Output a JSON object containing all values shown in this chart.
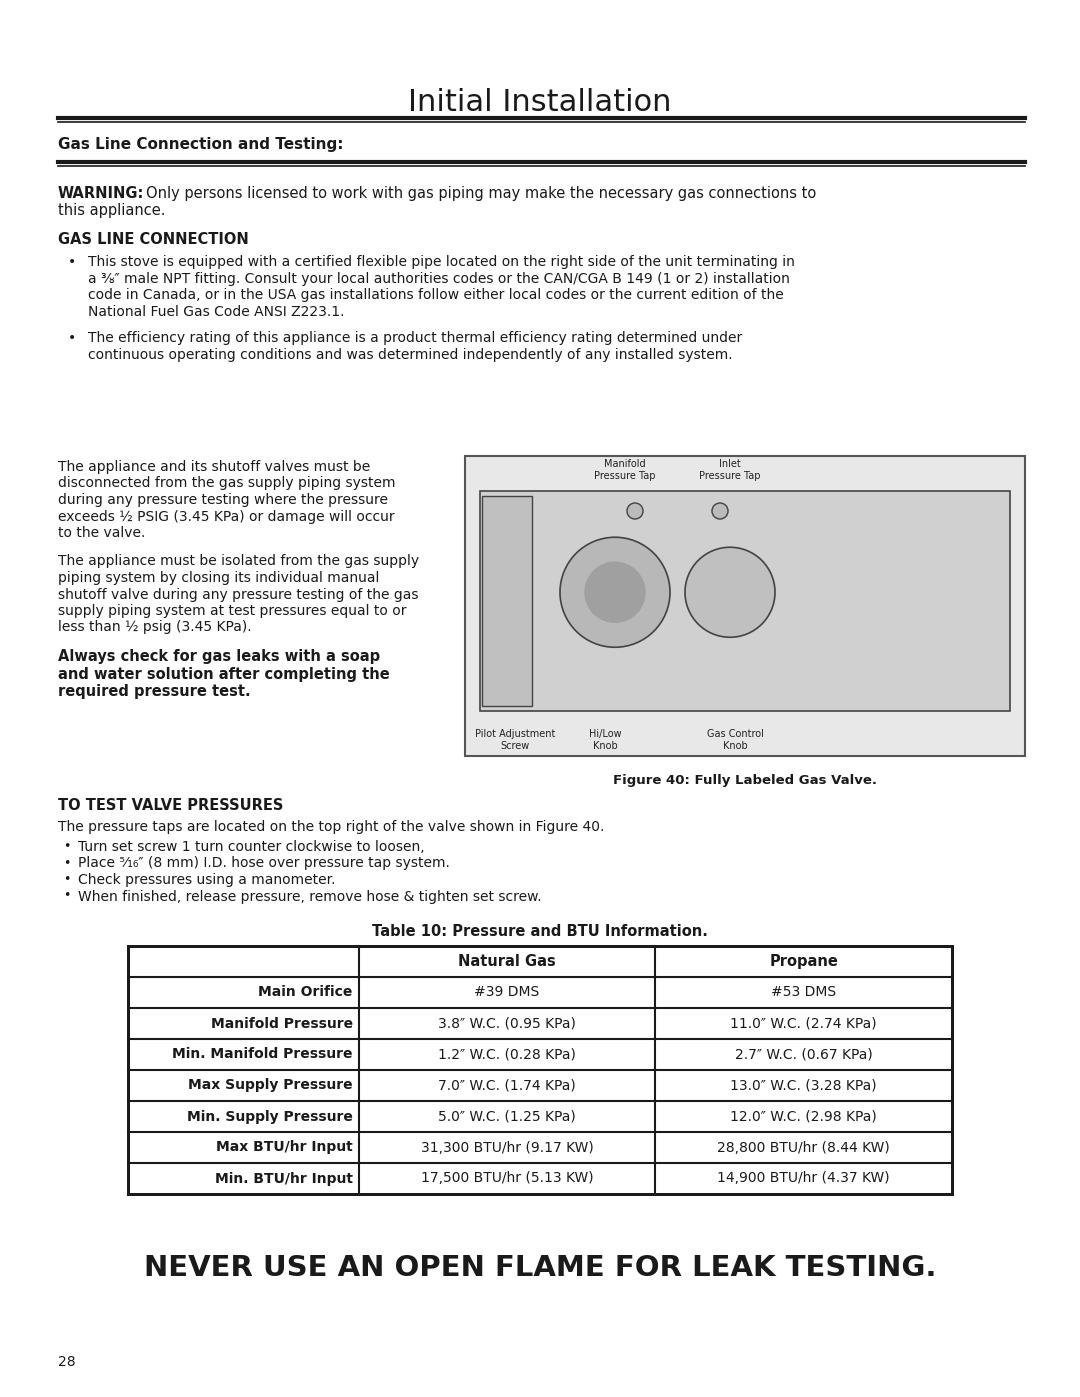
{
  "page_title": "Initial Installation",
  "section_title": "Gas Line Connection and Testing:",
  "page_number": "28",
  "warning_bold": "WARNING:",
  "warning_line1": "Only persons licensed to work with gas piping may make the necessary gas connections to",
  "warning_line2": "this appliance.",
  "gas_line_header": "GAS LINE CONNECTION",
  "bullet1_lines": [
    "This stove is equipped with a certified flexible pipe located on the right side of the unit terminating in",
    "a ⅜″ male NPT fitting. Consult your local authorities codes or the CAN/CGA B 149 (1 or 2) installation",
    "code in Canada, or in the USA gas installations follow either local codes or the current edition of the",
    "National Fuel Gas Code ANSI Z223.1."
  ],
  "bullet2_lines": [
    "The efficiency rating of this appliance is a product thermal efficiency rating determined under",
    "continuous operating conditions and was determined independently of any installed system."
  ],
  "para1_lines": [
    "The appliance and its shutoff valves must be",
    "disconnected from the gas supply piping system",
    "during any pressure testing where the pressure",
    "exceeds ½ PSIG (3.45 KPa) or damage will occur",
    "to the valve."
  ],
  "para2_lines": [
    "The appliance must be isolated from the gas supply",
    "piping system by closing its individual manual",
    "shutoff valve during any pressure testing of the gas",
    "supply piping system at test pressures equal to or",
    "less than ½ psig (3.45 KPa)."
  ],
  "bold_para_lines": [
    "Always check for gas leaks with a soap",
    "and water solution after completing the",
    "required pressure test."
  ],
  "figure_caption": "Figure 40: Fully Labeled Gas Valve.",
  "fig_labels_top": [
    "Manifold\nPressure Tap",
    "Inlet\nPressure Tap"
  ],
  "fig_labels_bottom": [
    "Pilot Adjustment\nScrew",
    "Hi/Low\nKnob",
    "Gas Control\nKnob"
  ],
  "valve_section_header": "TO TEST VALVE PRESSURES",
  "valve_para": "The pressure taps are located on the top right of the valve shown in Figure 40.",
  "valve_bullets": [
    "Turn set screw 1 turn counter clockwise to loosen,",
    "Place ⁵⁄₁₆″ (8 mm) I.D. hose over pressure tap system.",
    "Check pressures using a manometer.",
    "When finished, release pressure, remove hose & tighten set screw."
  ],
  "table_caption": "Table 10: Pressure and BTU Information.",
  "table_headers": [
    "",
    "Natural Gas",
    "Propane"
  ],
  "table_rows": [
    [
      "Main Orifice",
      "#39 DMS",
      "#53 DMS"
    ],
    [
      "Manifold Pressure",
      "3.8″ W.C. (0.95 KPa)",
      "11.0″ W.C. (2.74 KPa)"
    ],
    [
      "Min. Manifold Pressure",
      "1.2″ W.C. (0.28 KPa)",
      "2.7″ W.C. (0.67 KPa)"
    ],
    [
      "Max Supply Pressure",
      "7.0″ W.C. (1.74 KPa)",
      "13.0″ W.C. (3.28 KPa)"
    ],
    [
      "Min. Supply Pressure",
      "5.0″ W.C. (1.25 KPa)",
      "12.0″ W.C. (2.98 KPa)"
    ],
    [
      "Max BTU/hr Input",
      "31,300 BTU/hr (9.17 KW)",
      "28,800 BTU/hr (8.44 KW)"
    ],
    [
      "Min. BTU/hr Input",
      "17,500 BTU/hr (5.13 KW)",
      "14,900 BTU/hr (4.37 KW)"
    ]
  ],
  "footer_text": "NEVER USE AN OPEN FLAME FOR LEAK TESTING.",
  "bg_color": "#ffffff",
  "text_color": "#1a1a1a",
  "table_border_color": "#1a1a1a"
}
